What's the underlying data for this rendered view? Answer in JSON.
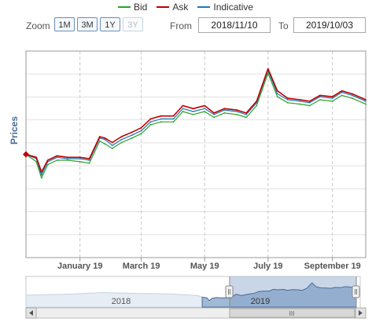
{
  "legend": [
    {
      "name": "Bid",
      "color": "#2ca02c"
    },
    {
      "name": "Ask",
      "color": "#c00000"
    },
    {
      "name": "Indicative",
      "color": "#1f77b4"
    }
  ],
  "toolbar": {
    "zoom_label": "Zoom",
    "zoom_buttons": [
      {
        "label": "1M",
        "enabled": true
      },
      {
        "label": "3M",
        "enabled": true
      },
      {
        "label": "1Y",
        "enabled": true
      },
      {
        "label": "3Y",
        "enabled": false
      }
    ],
    "from_label": "From",
    "from_value": "2018/11/10",
    "to_label": "To",
    "to_value": "2019/10/03"
  },
  "navigator": {
    "year_labels": [
      "2018",
      "2019"
    ],
    "scrollbar_grip": "III"
  },
  "chart_data": {
    "type": "line",
    "ylabel": "Prices",
    "x_tick_labels": [
      "January 19",
      "March 19",
      "May 19",
      "July 19",
      "September 19"
    ],
    "x_range": [
      "2018-11-10",
      "2019-10-03"
    ],
    "y_axis_labels_shown": false,
    "grid": true,
    "legend_position": "top-center",
    "note": "Relative price levels; y-axis values are not printed in the chart.",
    "x": [
      "2018-11-10",
      "2018-11-20",
      "2018-11-25",
      "2018-12-01",
      "2018-12-10",
      "2018-12-20",
      "2019-01-01",
      "2019-01-10",
      "2019-01-20",
      "2019-01-25",
      "2019-02-01",
      "2019-02-10",
      "2019-02-20",
      "2019-03-01",
      "2019-03-10",
      "2019-03-20",
      "2019-04-01",
      "2019-04-10",
      "2019-04-20",
      "2019-05-01",
      "2019-05-10",
      "2019-05-20",
      "2019-06-01",
      "2019-06-10",
      "2019-06-20",
      "2019-07-01",
      "2019-07-10",
      "2019-07-20",
      "2019-08-01",
      "2019-08-10",
      "2019-08-20",
      "2019-09-01",
      "2019-09-10",
      "2019-09-20",
      "2019-10-03"
    ],
    "series": [
      {
        "name": "Ask",
        "values": [
          100,
          98,
          88,
          96,
          99,
          98,
          98,
          97,
          112,
          111,
          108,
          112,
          115,
          118,
          124,
          126,
          126,
          133,
          131,
          133,
          128,
          131,
          130,
          128,
          136,
          158,
          143,
          138,
          137,
          136,
          140,
          139,
          143,
          141,
          137
        ]
      },
      {
        "name": "Indicative",
        "values": [
          100,
          97,
          86,
          95,
          98,
          97,
          97,
          96,
          111,
          110,
          106,
          110,
          113,
          116,
          122,
          124,
          124,
          131,
          129,
          131,
          127,
          130,
          129,
          127,
          135,
          157,
          141,
          137,
          136,
          135,
          139,
          138,
          142,
          140,
          136
        ]
      },
      {
        "name": "Bid",
        "values": [
          100,
          95,
          84,
          93,
          96,
          96,
          95,
          94,
          109,
          107,
          104,
          108,
          111,
          114,
          120,
          122,
          122,
          129,
          127,
          129,
          125,
          128,
          127,
          125,
          133,
          155,
          139,
          135,
          134,
          133,
          137,
          136,
          140,
          138,
          134
        ]
      }
    ]
  }
}
